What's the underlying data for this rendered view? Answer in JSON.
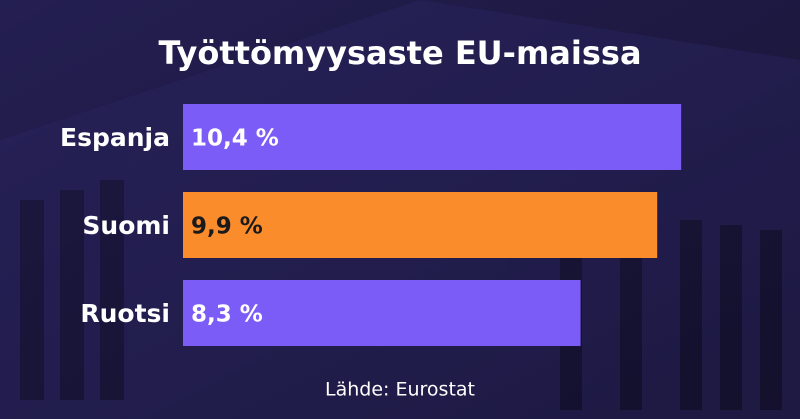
{
  "chart_data": {
    "type": "hbar",
    "title": "Työttömyysaste EU-maissa",
    "categories": [
      "Espanja",
      "Suomi",
      "Ruotsi"
    ],
    "values": [
      10.4,
      9.9,
      8.3
    ],
    "value_labels": [
      "10,4 %",
      "9,9 %",
      "8,3 %"
    ],
    "colors": [
      "#7c5cf6",
      "#fb8c2c",
      "#7c5cf6"
    ],
    "source": "Lähde: Eurostat"
  }
}
